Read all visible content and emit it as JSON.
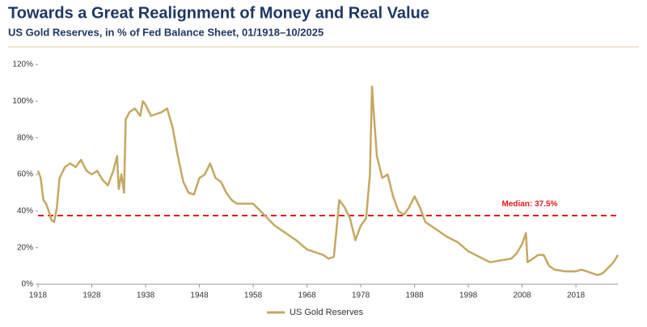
{
  "chart_data": {
    "type": "line",
    "title": "Towards a Great Realignment of Money and Real Value",
    "subtitle": "US Gold Reserves, in % of Fed Balance Sheet, 01/1918–10/2025",
    "x": [
      1918,
      1918.5,
      1919,
      1919.5,
      1920,
      1920.5,
      1921,
      1921.5,
      1922,
      1923,
      1924,
      1925,
      1926,
      1927,
      1928,
      1929,
      1930,
      1931,
      1932,
      1932.7,
      1933,
      1933.5,
      1934,
      1934.3,
      1935,
      1936,
      1937,
      1937.5,
      1938,
      1939,
      1940,
      1941,
      1942,
      1943,
      1944,
      1945,
      1946,
      1947,
      1948,
      1949,
      1950,
      1951,
      1952,
      1953,
      1954,
      1955,
      1957,
      1958,
      1960,
      1962,
      1964,
      1966,
      1968,
      1970,
      1971,
      1972,
      1973,
      1973.5,
      1974,
      1975,
      1976,
      1977,
      1978,
      1979,
      1979.7,
      1980.1,
      1980.5,
      1981,
      1982,
      1983,
      1984,
      1985,
      1986,
      1987,
      1988,
      1989,
      1990,
      1992,
      1994,
      1996,
      1998,
      2000,
      2002,
      2004,
      2006,
      2007,
      2008,
      2008.7,
      2009,
      2010,
      2011,
      2012,
      2013,
      2014,
      2016,
      2018,
      2019,
      2020,
      2021,
      2022,
      2023,
      2024,
      2025,
      2025.8
    ],
    "series": [
      {
        "name": "US Gold Reserves",
        "color": "#c4a862",
        "values": [
          62,
          58,
          46,
          44,
          40,
          35,
          34,
          42,
          58,
          64,
          66,
          64,
          68,
          62,
          60,
          62,
          57,
          54,
          62,
          70,
          52,
          60,
          50,
          90,
          94,
          96,
          92,
          100,
          98,
          92,
          93,
          94,
          96,
          86,
          70,
          56,
          50,
          49,
          58,
          60,
          66,
          58,
          56,
          50,
          46,
          44,
          44,
          44,
          38,
          32,
          28,
          24,
          19,
          17,
          16,
          14,
          15,
          30,
          46,
          42,
          36,
          24,
          32,
          36,
          60,
          108,
          90,
          70,
          58,
          60,
          48,
          40,
          38,
          42,
          48,
          42,
          34,
          30,
          26,
          23,
          18,
          15,
          12,
          13,
          14,
          17,
          22,
          28,
          12,
          14,
          16,
          16,
          10,
          8,
          7,
          7,
          8,
          7,
          6,
          5,
          6,
          9,
          12,
          16
        ]
      }
    ],
    "median": {
      "value": 37.5,
      "label": "Median: 37.5%",
      "color": "#e3191c"
    },
    "xlim": [
      1918,
      2025.8
    ],
    "xticks": [
      1918,
      1928,
      1938,
      1948,
      1958,
      1968,
      1978,
      1988,
      1998,
      2008,
      2018
    ],
    "ylim": [
      0,
      120
    ],
    "yticks": [
      {
        "value": 0,
        "label": "0%"
      },
      {
        "value": 20,
        "label": "20%"
      },
      {
        "value": 40,
        "label": "40%"
      },
      {
        "value": 60,
        "label": "60%"
      },
      {
        "value": 80,
        "label": "80%"
      },
      {
        "value": 100,
        "label": "100%"
      },
      {
        "value": 120,
        "label": "120%"
      }
    ]
  }
}
